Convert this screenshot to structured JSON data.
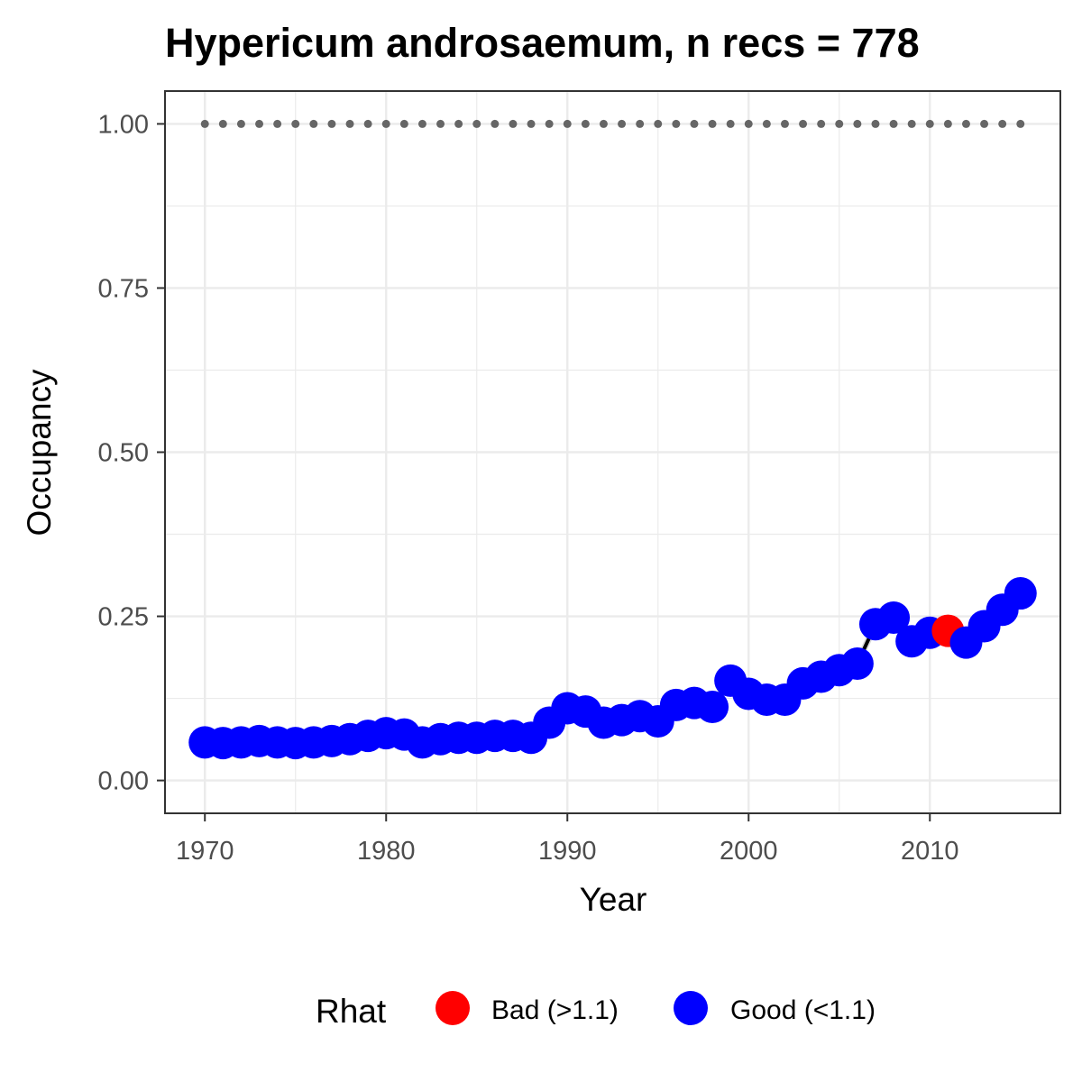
{
  "chart_data": {
    "type": "line",
    "title": "Hypericum androsaemum, n recs = 778",
    "xlabel": "Year",
    "ylabel": "Occupancy",
    "xlim": [
      1967.8,
      2017.2
    ],
    "ylim": [
      -0.05,
      1.05
    ],
    "x_ticks": [
      "1970",
      "1980",
      "1990",
      "2000",
      "2010"
    ],
    "y_ticks": [
      "0.00",
      "0.25",
      "0.50",
      "0.75",
      "1.00"
    ],
    "grid": true,
    "legend": {
      "title": "Rhat",
      "position": "bottom",
      "entries": [
        {
          "label": "Bad (>1.1)",
          "color": "#ff0000"
        },
        {
          "label": "Good (<1.1)",
          "color": "#0000ff"
        }
      ]
    },
    "reference_line": {
      "y": 1.0,
      "style": "dotted",
      "color": "#666666"
    },
    "series": [
      {
        "x": [
          1970,
          1971,
          1972,
          1973,
          1974,
          1975,
          1976,
          1977,
          1978,
          1979,
          1980,
          1981,
          1982,
          1983,
          1984,
          1985,
          1986,
          1987,
          1988,
          1989,
          1990,
          1991,
          1992,
          1993,
          1994,
          1995,
          1996,
          1997,
          1998,
          1999,
          2000,
          2001,
          2002,
          2003,
          2004,
          2005,
          2006,
          2007,
          2008,
          2009,
          2010,
          2011,
          2012,
          2013,
          2014,
          2015
        ],
        "y": [
          0.058,
          0.057,
          0.058,
          0.06,
          0.058,
          0.057,
          0.058,
          0.06,
          0.063,
          0.068,
          0.072,
          0.07,
          0.058,
          0.063,
          0.065,
          0.065,
          0.068,
          0.068,
          0.065,
          0.088,
          0.11,
          0.105,
          0.088,
          0.092,
          0.098,
          0.09,
          0.115,
          0.118,
          0.112,
          0.152,
          0.132,
          0.123,
          0.123,
          0.148,
          0.158,
          0.168,
          0.178,
          0.238,
          0.248,
          0.212,
          0.225,
          0.228,
          0.21,
          0.235,
          0.26,
          0.285
        ],
        "rhat": [
          "Good",
          "Good",
          "Good",
          "Good",
          "Good",
          "Good",
          "Good",
          "Good",
          "Good",
          "Good",
          "Good",
          "Good",
          "Good",
          "Good",
          "Good",
          "Good",
          "Good",
          "Good",
          "Good",
          "Good",
          "Good",
          "Good",
          "Good",
          "Good",
          "Good",
          "Good",
          "Good",
          "Good",
          "Good",
          "Good",
          "Good",
          "Good",
          "Good",
          "Good",
          "Good",
          "Good",
          "Good",
          "Good",
          "Good",
          "Good",
          "Good",
          "Bad",
          "Good",
          "Good",
          "Good",
          "Good"
        ]
      }
    ],
    "colors": {
      "good": "#0000ff",
      "bad": "#ff0000",
      "line": "#000000",
      "ribbon": "#d9d9d9",
      "grid": "#ebebeb",
      "panel_border": "#333333"
    }
  }
}
